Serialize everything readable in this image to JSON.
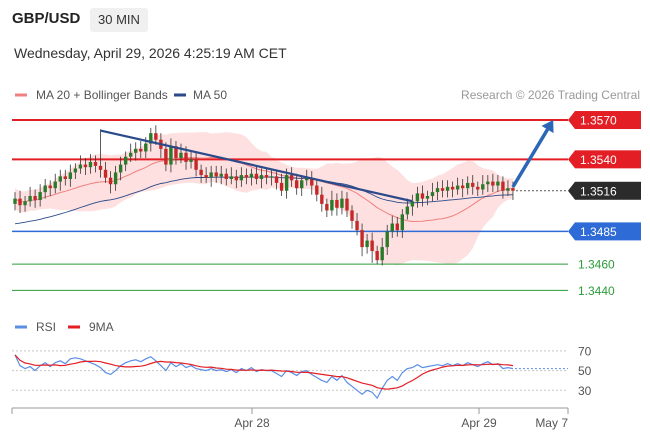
{
  "header": {
    "symbol": "GBP/USD",
    "timeframe": "30 MIN",
    "datetime": "Wednesday, April 29, 2026 4:25:19 AM CET"
  },
  "chart_data": {
    "type": "candlestick",
    "research": "Research © 2026 Trading Central",
    "legend": [
      {
        "label": "MA 20 + Bollinger Bands",
        "color": "#f08080"
      },
      {
        "label": "MA 50",
        "color": "#2b4a8a"
      }
    ],
    "ylim": [
      1.3425,
      1.3583
    ],
    "last_price": "1.3516",
    "levels": [
      {
        "value": 1.357,
        "label": "1.3570",
        "kind": "resistance",
        "color": "#e31e24"
      },
      {
        "value": 1.354,
        "label": "1.3540",
        "kind": "resistance",
        "color": "#e31e24"
      },
      {
        "value": 1.3485,
        "label": "1.3485",
        "kind": "pivot",
        "color": "#2e6bd6"
      },
      {
        "value": 1.346,
        "label": "1.3460",
        "kind": "support",
        "color": "#2a9d3a"
      },
      {
        "value": 1.344,
        "label": "1.3440",
        "kind": "support",
        "color": "#2a9d3a"
      }
    ],
    "x_ticks": [
      "Apr 28",
      "Apr 29",
      "May 7"
    ],
    "close": [
      1.351,
      1.3505,
      1.3508,
      1.3512,
      1.3509,
      1.3515,
      1.352,
      1.3518,
      1.3523,
      1.3527,
      1.3525,
      1.353,
      1.3533,
      1.3536,
      1.3534,
      1.3538,
      1.3535,
      1.3532,
      1.3526,
      1.3521,
      1.353,
      1.3536,
      1.3542,
      1.3545,
      1.3548,
      1.3546,
      1.3552,
      1.356,
      1.3555,
      1.3548,
      1.3536,
      1.355,
      1.3541,
      1.3545,
      1.3538,
      1.354,
      1.3532,
      1.3528,
      1.3526,
      1.353,
      1.3527,
      1.3529,
      1.3525,
      1.3527,
      1.3524,
      1.3528,
      1.3526,
      1.3529,
      1.3525,
      1.3528,
      1.3526,
      1.3527,
      1.3522,
      1.3516,
      1.3528,
      1.3524,
      1.3518,
      1.3524,
      1.3526,
      1.352,
      1.3513,
      1.3506,
      1.3501,
      1.3509,
      1.3503,
      1.351,
      1.3501,
      1.3493,
      1.3486,
      1.3473,
      1.3478,
      1.347,
      1.3463,
      1.3473,
      1.3485,
      1.3491,
      1.3486,
      1.3498,
      1.3504,
      1.3508,
      1.3514,
      1.351,
      1.3512,
      1.3515,
      1.3518,
      1.3516,
      1.3519,
      1.3517,
      1.352,
      1.3518,
      1.3522,
      1.3519,
      1.3517,
      1.3521,
      1.3523,
      1.352,
      1.3523,
      1.3516,
      1.3518,
      1.3516
    ],
    "ma50_end": 1.3513,
    "trendline": {
      "from": [
        17,
        1.3562
      ],
      "to": [
        79,
        1.3508
      ],
      "color": "#2b4a8a"
    },
    "projection": {
      "from": [
        99,
        1.3519
      ],
      "to": [
        107,
        1.357
      ],
      "color": "#2b67b6"
    },
    "rsi": {
      "ticks": [
        70,
        50,
        30
      ],
      "legend": [
        {
          "label": "RSI",
          "color": "#5a8ee6"
        },
        {
          "label": "9MA",
          "color": "#e31e24"
        }
      ],
      "values": [
        66,
        55,
        52,
        54,
        50,
        55,
        58,
        54,
        58,
        60,
        57,
        62,
        63,
        62,
        60,
        58,
        56,
        53,
        48,
        46,
        50,
        55,
        58,
        60,
        61,
        59,
        62,
        64,
        60,
        55,
        50,
        58,
        54,
        57,
        53,
        55,
        52,
        51,
        50,
        52,
        50,
        51,
        49,
        51,
        48,
        52,
        50,
        53,
        49,
        51,
        50,
        50,
        47,
        44,
        50,
        48,
        45,
        49,
        50,
        46,
        43,
        40,
        38,
        44,
        40,
        45,
        38,
        34,
        30,
        26,
        30,
        28,
        22,
        32,
        40,
        44,
        40,
        48,
        52,
        53,
        56,
        53,
        54,
        55,
        56,
        55,
        57,
        55,
        57,
        55,
        58,
        56,
        54,
        57,
        59,
        56,
        57,
        52,
        53,
        52
      ]
    }
  }
}
